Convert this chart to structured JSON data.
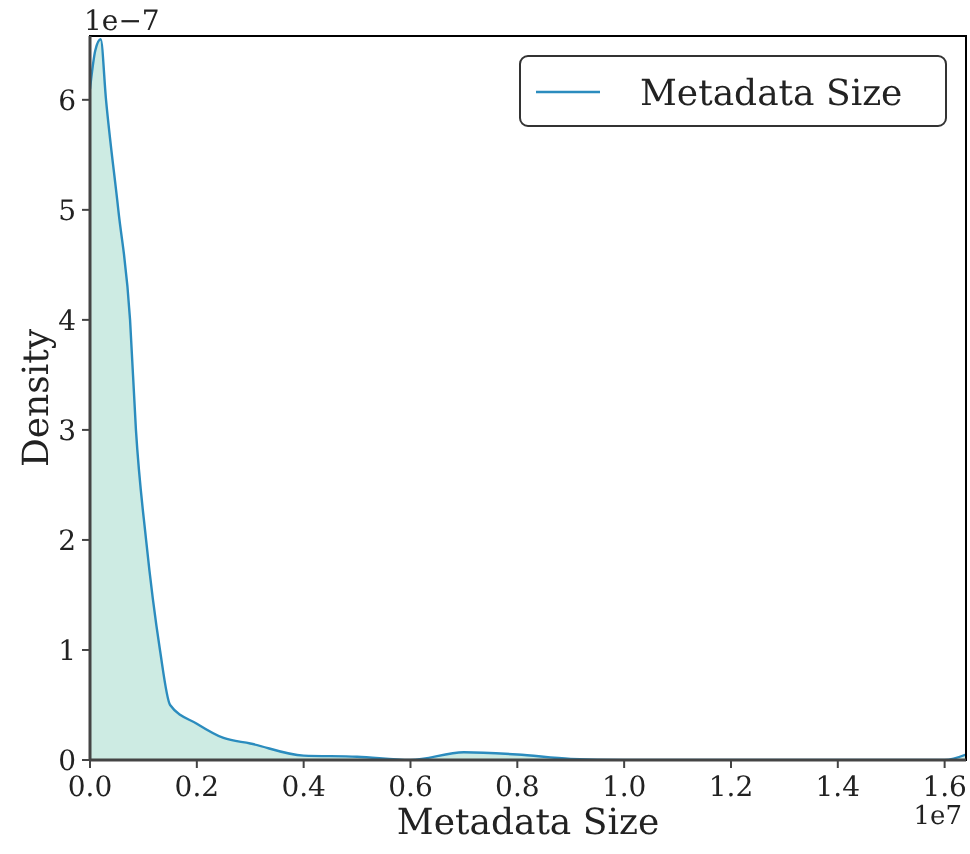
{
  "chart_data": {
    "type": "area",
    "xlabel": "Metadata Size",
    "ylabel": "Density",
    "legend": "top right",
    "annotations": [
      "1e−7",
      "1e7"
    ],
    "x": [
      0,
      0.01,
      0.02,
      0.03,
      0.053,
      0.075,
      0.086,
      0.105,
      0.131,
      0.15,
      0.2,
      0.25,
      0.3,
      0.4,
      0.5,
      0.6,
      0.7,
      0.8,
      0.9,
      1.0,
      1.2,
      1.4,
      1.6,
      1.64
    ],
    "series": [
      {
        "name": "Metadata Size",
        "color": "#2b8cbe",
        "values": [
          6.1,
          6.45,
          6.55,
          6.0,
          5.0,
          4.0,
          3.0,
          2.0,
          1.0,
          0.5,
          0.33,
          0.2,
          0.15,
          0.04,
          0.03,
          0.0,
          0.07,
          0.05,
          0.01,
          0.0,
          0.0,
          0.0,
          0.0,
          0.05
        ]
      }
    ],
    "xlim": [
      0,
      1.64
    ],
    "ylim": [
      0,
      6.58
    ],
    "xticks": [
      {
        "value": 0,
        "label": "0.0"
      },
      0.2,
      0.4,
      0.6,
      0.8,
      {
        "value": 1,
        "label": "1.0"
      },
      1.2,
      1.4,
      1.6
    ],
    "yticks": [
      0,
      1,
      2,
      3,
      4,
      5,
      6
    ]
  }
}
